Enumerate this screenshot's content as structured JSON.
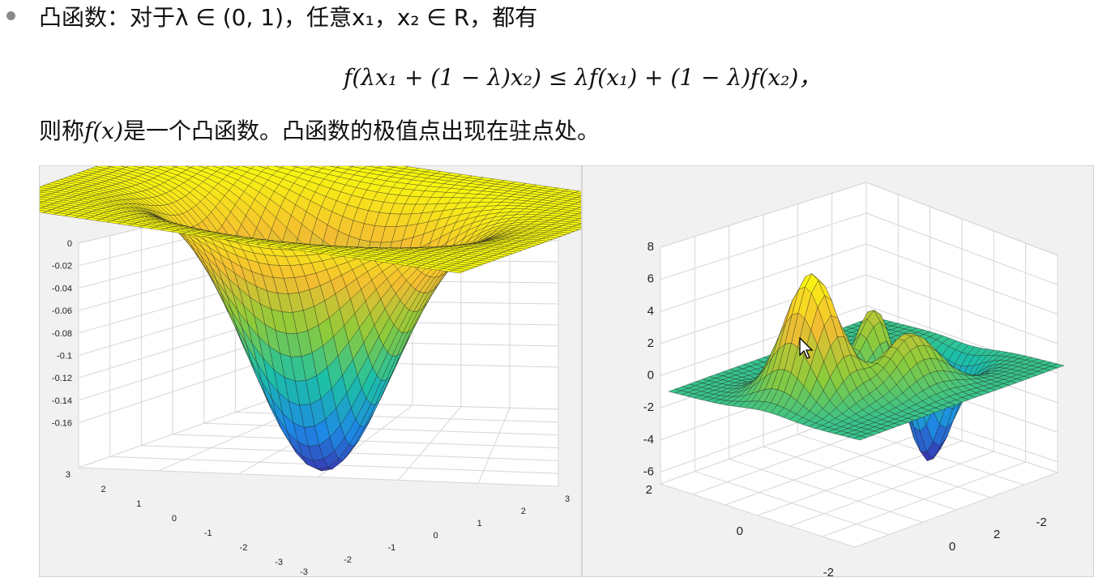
{
  "slide": {
    "line1": "凸函数：对于λ ∈ (0, 1)，任意x₁，x₂ ∈ R，都有",
    "formula": "f(λx₁ + (1 − λ)x₂) ≤ λf(x₁) + (1 − λ)f(x₂)，",
    "line2_prefix": "则称",
    "line2_math": "f(x)",
    "line2_suffix": "是一个凸函数。凸函数的极值点出现在驻点处。"
  },
  "chart_data": [
    {
      "type": "surface",
      "z_tick_labels": [
        "0",
        "-0.02",
        "-0.04",
        "-0.06",
        "-0.08",
        "-0.1",
        "-0.12",
        "-0.14",
        "-0.16"
      ],
      "y_tick_labels": [
        "3",
        "2",
        "1",
        "0",
        "-1",
        "-2",
        "-3"
      ],
      "x_tick_labels": [
        "-3",
        "-2",
        "-1",
        "0",
        "1",
        "2",
        "3"
      ],
      "zlim": [
        -0.17,
        0
      ],
      "xlim": [
        -3,
        3
      ],
      "ylim": [
        -3,
        3
      ],
      "colormap": [
        "#3e26a8",
        "#1d89e5",
        "#1dc0a6",
        "#8dcb3a",
        "#f4bd31",
        "#f9fb0e"
      ]
    },
    {
      "type": "surface",
      "z_tick_labels": [
        "8",
        "6",
        "4",
        "2",
        "0",
        "-2",
        "-4",
        "-6"
      ],
      "y_tick_labels": [
        "2",
        "0",
        "-2"
      ],
      "x_tick_labels": [
        "0",
        "2",
        "-2"
      ],
      "zlim": [
        -6,
        8
      ],
      "colormap": [
        "#3e26a8",
        "#1d89e5",
        "#1dc0a6",
        "#8dcb3a",
        "#f4bd31",
        "#f9fb0e"
      ]
    }
  ]
}
